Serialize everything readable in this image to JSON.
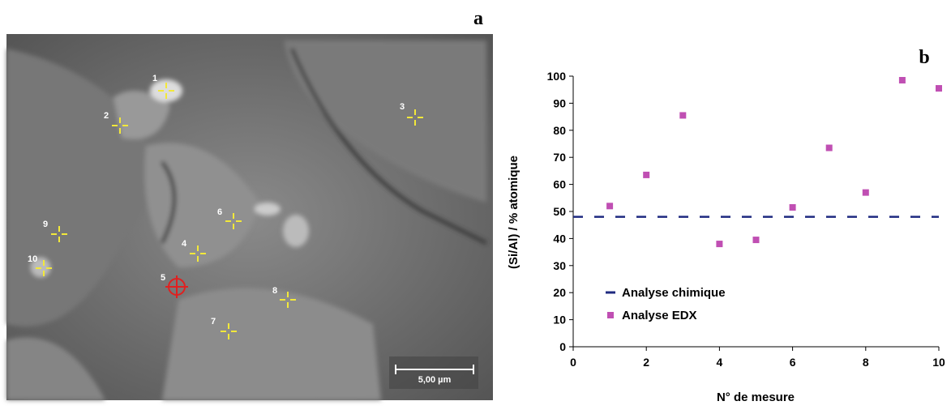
{
  "panel_a": {
    "label": "a",
    "points": [
      "1",
      "2",
      "3",
      "4",
      "5",
      "6",
      "7",
      "8",
      "9",
      "10"
    ],
    "scale_bar": "5,00 µm"
  },
  "chart_data": {
    "type": "scatter",
    "label": "b",
    "xlabel": "N° de mesure",
    "ylabel": "(Si/Al) / % atomique",
    "xlim": [
      0,
      10
    ],
    "xticks": [
      0,
      2,
      4,
      6,
      8,
      10
    ],
    "ylim": [
      0,
      100
    ],
    "yticks": [
      0,
      10,
      20,
      30,
      40,
      50,
      60,
      70,
      80,
      90,
      100
    ],
    "legend": "lower left",
    "series": [
      {
        "name": "Analyse chimique",
        "color": "#1f2a80",
        "line_style": "dashed",
        "x": [
          0,
          10
        ],
        "values": [
          48,
          48
        ]
      },
      {
        "name": "Analyse EDX",
        "color": "#c04fb3",
        "marker": "square",
        "x": [
          1,
          2,
          3,
          4,
          5,
          6,
          7,
          8,
          9,
          10
        ],
        "values": [
          52,
          63.5,
          85.5,
          38,
          39.5,
          51.5,
          73.5,
          57,
          98.5,
          95.5
        ]
      }
    ]
  }
}
